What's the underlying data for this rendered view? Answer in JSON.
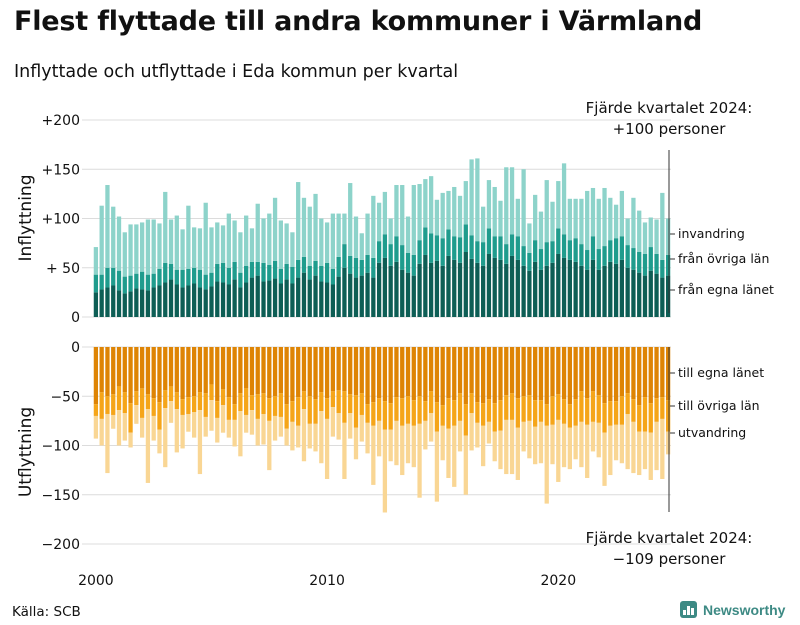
{
  "title": "Flest flyttade till andra kommuner i Värmland",
  "subtitle": "Inflyttade och utflyttade i Eda kommun per kvartal",
  "source": "Källa: SCB",
  "brand": "Newsworthy",
  "colors": {
    "in_own": "#0d5e55",
    "in_other": "#1f9c8d",
    "in_abroad": "#8dd3ca",
    "out_own": "#de8404",
    "out_other": "#f5a519",
    "out_abroad": "#f9d694",
    "grid": "#dcdcdc",
    "text": "#111111",
    "brand": "#3d8a84"
  },
  "chart_data": [
    {
      "type": "bar",
      "panel": "top",
      "stacked": true,
      "ylabel": "Inflyttning",
      "ylim": [
        0,
        200
      ],
      "yticks": [
        0,
        50,
        100,
        150,
        200
      ],
      "ytick_labels": [
        "0",
        "+ 50",
        "+100",
        "+150",
        "+200"
      ],
      "x_start": "2000 Q1",
      "x_end": "2024 Q4",
      "xticks": [
        "2000",
        "2010",
        "2020"
      ],
      "series": [
        {
          "name": "från egna länet",
          "values": [
            25,
            28,
            30,
            32,
            27,
            24,
            26,
            29,
            28,
            27,
            30,
            32,
            35,
            38,
            33,
            30,
            32,
            34,
            30,
            28,
            31,
            36,
            35,
            33,
            38,
            30,
            35,
            40,
            42,
            36,
            37,
            39,
            34,
            38,
            34,
            40,
            45,
            38,
            42,
            36,
            35,
            33,
            41,
            50,
            44,
            40,
            42,
            45,
            40,
            55,
            60,
            52,
            56,
            48,
            45,
            42,
            54,
            63,
            55,
            57,
            52,
            62,
            58,
            55,
            66,
            59,
            55,
            52,
            64,
            60,
            58,
            54,
            62,
            58,
            52,
            47,
            56,
            48,
            52,
            55,
            64,
            60,
            58,
            56,
            52,
            48,
            58,
            48,
            52,
            56,
            54,
            58,
            50,
            48,
            45,
            42,
            47,
            44,
            40,
            42
          ]
        },
        {
          "name": "från övriga län",
          "values": [
            18,
            15,
            20,
            18,
            20,
            17,
            16,
            15,
            18,
            16,
            14,
            17,
            20,
            16,
            15,
            18,
            17,
            16,
            18,
            15,
            14,
            18,
            20,
            17,
            18,
            15,
            17,
            16,
            14,
            19,
            16,
            18,
            15,
            16,
            17,
            18,
            16,
            14,
            15,
            16,
            20,
            16,
            20,
            24,
            18,
            20,
            16,
            18,
            20,
            22,
            24,
            22,
            26,
            25,
            20,
            21,
            24,
            28,
            30,
            26,
            28,
            27,
            24,
            26,
            28,
            24,
            22,
            24,
            26,
            22,
            24,
            20,
            22,
            24,
            20,
            18,
            22,
            21,
            24,
            22,
            26,
            24,
            20,
            24,
            22,
            20,
            24,
            21,
            20,
            22,
            26,
            24,
            23,
            22,
            21,
            22,
            24,
            20,
            18,
            21
          ]
        },
        {
          "name": "invandring",
          "values": [
            28,
            70,
            84,
            62,
            55,
            45,
            52,
            50,
            50,
            56,
            55,
            46,
            72,
            45,
            55,
            41,
            64,
            41,
            42,
            73,
            46,
            42,
            38,
            55,
            42,
            41,
            51,
            34,
            59,
            45,
            52,
            64,
            49,
            41,
            35,
            79,
            60,
            60,
            68,
            48,
            41,
            56,
            44,
            31,
            74,
            42,
            27,
            42,
            63,
            39,
            43,
            26,
            52,
            61,
            37,
            71,
            57,
            49,
            58,
            36,
            46,
            39,
            50,
            42,
            44,
            77,
            84,
            36,
            49,
            50,
            36,
            78,
            68,
            38,
            78,
            30,
            46,
            38,
            63,
            40,
            48,
            72,
            42,
            40,
            46,
            60,
            49,
            51,
            59,
            43,
            34,
            46,
            27,
            51,
            42,
            32,
            30,
            35,
            68,
            37
          ]
        }
      ],
      "series_labels": [
        "invandring",
        "från övriga län",
        "från egna länet"
      ],
      "annotation": {
        "period": "Fjärde kvartalet 2024:",
        "value": "+100 personer"
      }
    },
    {
      "type": "bar",
      "panel": "bottom",
      "stacked": true,
      "ylabel": "Utflyttning",
      "ylim": [
        -200,
        0
      ],
      "yticks": [
        0,
        -50,
        -100,
        -150,
        -200
      ],
      "ytick_labels": [
        "0",
        "−50",
        "−100",
        "−150",
        "−200"
      ],
      "x_start": "2000 Q1",
      "x_end": "2024 Q4",
      "xticks": [
        "2000",
        "2010",
        "2020"
      ],
      "series": [
        {
          "name": "till egna länet",
          "values": [
            -58,
            -46,
            -50,
            -48,
            -40,
            -46,
            -57,
            -45,
            -42,
            -48,
            -52,
            -56,
            -44,
            -40,
            -46,
            -53,
            -51,
            -50,
            -46,
            -47,
            -38,
            -55,
            -43,
            -51,
            -58,
            -47,
            -42,
            -49,
            -48,
            -47,
            -52,
            -50,
            -47,
            -58,
            -55,
            -51,
            -45,
            -50,
            -53,
            -46,
            -52,
            -45,
            -44,
            -45,
            -48,
            -49,
            -47,
            -58,
            -56,
            -52,
            -55,
            -57,
            -51,
            -52,
            -50,
            -54,
            -50,
            -55,
            -45,
            -56,
            -59,
            -52,
            -54,
            -47,
            -58,
            -47,
            -56,
            -57,
            -53,
            -57,
            -54,
            -49,
            -47,
            -52,
            -50,
            -49,
            -54,
            -54,
            -58,
            -50,
            -48,
            -53,
            -58,
            -53,
            -45,
            -52,
            -45,
            -49,
            -57,
            -55,
            -55,
            -50,
            -47,
            -53,
            -59,
            -51,
            -57,
            -52,
            -51,
            -54
          ]
        },
        {
          "name": "till övriga län",
          "values": [
            -12,
            -27,
            -18,
            -21,
            -24,
            -21,
            -30,
            -14,
            -30,
            -15,
            -18,
            -28,
            -18,
            -15,
            -17,
            -16,
            -17,
            -16,
            -18,
            -24,
            -16,
            -17,
            -16,
            -23,
            -16,
            -18,
            -27,
            -15,
            -25,
            -21,
            -23,
            -20,
            -24,
            -25,
            -21,
            -29,
            -18,
            -28,
            -25,
            -19,
            -21,
            -16,
            -23,
            -32,
            -19,
            -33,
            -22,
            -19,
            -24,
            -23,
            -29,
            -27,
            -24,
            -28,
            -28,
            -26,
            -28,
            -20,
            -22,
            -30,
            -21,
            -31,
            -26,
            -28,
            -32,
            -20,
            -21,
            -23,
            -23,
            -29,
            -31,
            -25,
            -27,
            -30,
            -26,
            -26,
            -27,
            -22,
            -22,
            -29,
            -26,
            -25,
            -24,
            -27,
            -31,
            -27,
            -31,
            -28,
            -30,
            -25,
            -24,
            -29,
            -21,
            -23,
            -27,
            -35,
            -30,
            -24,
            -22,
            -32
          ]
        },
        {
          "name": "utvandring",
          "values": [
            -23,
            -27,
            -60,
            -14,
            -36,
            -28,
            -15,
            -19,
            -20,
            -75,
            -25,
            -24,
            -60,
            -22,
            -44,
            -34,
            -18,
            -26,
            -65,
            -20,
            -31,
            -25,
            -28,
            -18,
            -27,
            -46,
            -18,
            -25,
            -27,
            -31,
            -50,
            -25,
            -20,
            -17,
            -29,
            -22,
            -53,
            -25,
            -28,
            -53,
            -61,
            -30,
            -27,
            -57,
            -26,
            -32,
            -27,
            -31,
            -60,
            -36,
            -84,
            -32,
            -45,
            -50,
            -40,
            -42,
            -75,
            -29,
            -29,
            -71,
            -35,
            -50,
            -62,
            -31,
            -60,
            -38,
            -25,
            -41,
            -22,
            -30,
            -39,
            -55,
            -55,
            -53,
            -30,
            -38,
            -38,
            -42,
            -79,
            -40,
            -63,
            -44,
            -42,
            -34,
            -46,
            -54,
            -30,
            -35,
            -54,
            -50,
            -36,
            -39,
            -56,
            -52,
            -44,
            -38,
            -48,
            -49,
            -61,
            -23
          ]
        }
      ],
      "series_labels": [
        "till egna länet",
        "till övriga län",
        "utvandring"
      ],
      "annotation": {
        "period": "Fjärde kvartalet 2024:",
        "value": "−109 personer"
      }
    }
  ]
}
